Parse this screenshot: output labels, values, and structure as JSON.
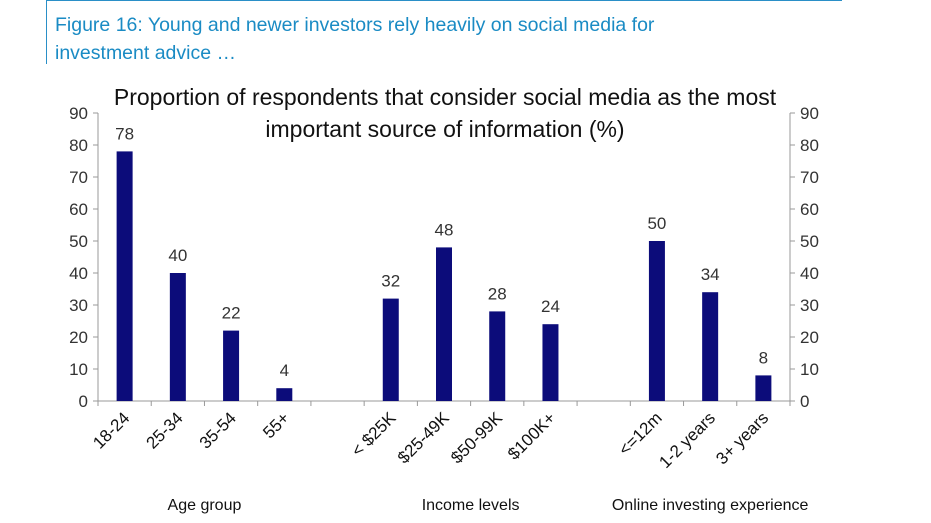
{
  "figure": {
    "caption": "Figure 16: Young and newer investors rely heavily on social media for\ninvestment advice …"
  },
  "colors": {
    "bar": "#0c0c7a",
    "caption": "#1a8bc4",
    "axis": "#999999"
  },
  "chart_data": {
    "type": "bar",
    "title_lines": [
      "Proportion of respondents that consider social media as the most",
      "important source of information (%)"
    ],
    "ylim": [
      0,
      90
    ],
    "yticks": [
      0,
      10,
      20,
      30,
      40,
      50,
      60,
      70,
      80,
      90
    ],
    "groups": [
      {
        "name": "Age group",
        "categories": [
          "18-24",
          "25-34",
          "35-54",
          "55+"
        ],
        "values": [
          78,
          40,
          22,
          4
        ]
      },
      {
        "name": "Income levels",
        "categories": [
          "< $25K",
          "$25-49K",
          "$50-99K",
          "$100K+"
        ],
        "values": [
          32,
          48,
          28,
          24
        ]
      },
      {
        "name": "Online investing experience",
        "categories": [
          "<=12m",
          "1-2 years",
          "3+ years"
        ],
        "values": [
          50,
          34,
          8
        ]
      }
    ],
    "grid": false,
    "legend": "none"
  }
}
